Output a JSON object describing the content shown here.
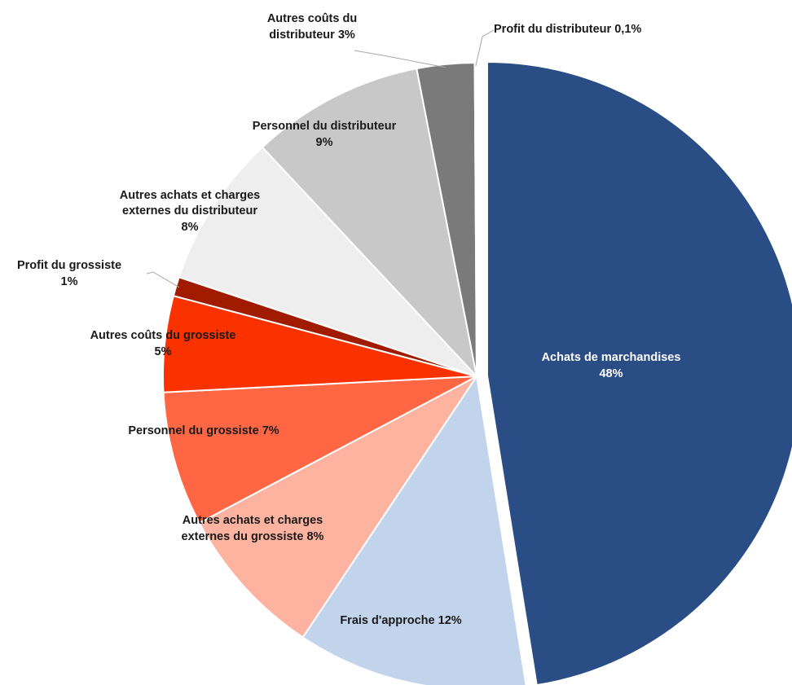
{
  "chart_data": {
    "type": "pie",
    "categories": [
      "Achats de marchandises",
      "Frais d'approche",
      "Autres achats et charges externes du grossiste",
      "Personnel du grossiste",
      "Autres coûts du grossiste",
      "Profit du grossiste",
      "Autres achats et charges externes du distributeur",
      "Personnel du distributeur",
      "Autres coûts du distributeur",
      "Profit du distributeur"
    ],
    "values": [
      48,
      12,
      8,
      7,
      5,
      1,
      8,
      9,
      3,
      0.1
    ],
    "value_labels": [
      "48%",
      "12%",
      "8%",
      "7%",
      "5%",
      "1%",
      "8%",
      "9%",
      "3%",
      "0,1%"
    ],
    "colors": [
      "#2a4d86",
      "#c2d3ec",
      "#fdb3a0",
      "#ff6644",
      "#f93200",
      "#a11b00",
      "#eeeeee",
      "#c8c8c8",
      "#7a7a7a",
      "#f2f2f2"
    ],
    "exploded": [
      0
    ]
  }
}
